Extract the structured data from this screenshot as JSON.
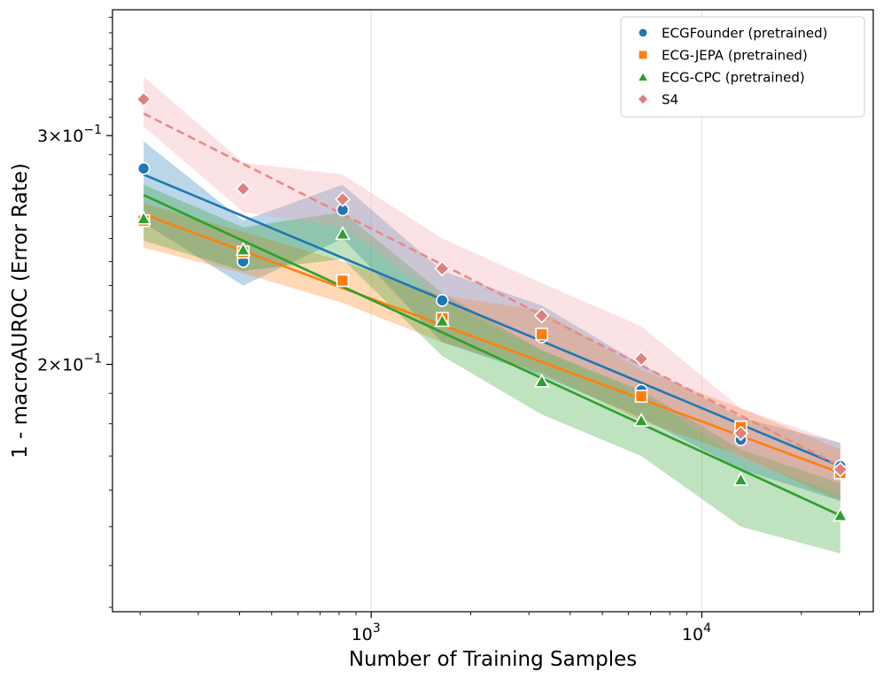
{
  "chart_data": {
    "type": "scatter",
    "title": "",
    "xlabel": "Number of Training Samples",
    "ylabel": "1 - macroAUROC (Error Rate)",
    "xscale": "log",
    "yscale": "log",
    "xlim": [
      165,
      33000
    ],
    "ylim": [
      0.129,
      0.375
    ],
    "grid": "vertical",
    "legend_position": "top-right",
    "x_ticks": [
      {
        "value": 1000,
        "base": "10",
        "exp": "3"
      },
      {
        "value": 10000,
        "base": "10",
        "exp": "4"
      }
    ],
    "y_ticks": [
      {
        "value": 0.3,
        "mant": "3",
        "times": "×",
        "base": "10",
        "exp": "−1"
      },
      {
        "value": 0.2,
        "mant": "2",
        "times": "×",
        "base": "10",
        "exp": "−1"
      }
    ],
    "x": [
      205,
      410,
      820,
      1640,
      3280,
      6560,
      13120,
      26240
    ],
    "series": [
      {
        "name": "ECGFounder (pretrained)",
        "color": "#1f77b4",
        "marker": "circle",
        "line_style": "solid",
        "values": [
          0.283,
          0.24,
          0.263,
          0.224,
          0.21,
          0.191,
          0.175,
          0.167
        ],
        "band_low": [
          0.257,
          0.23,
          0.25,
          0.208,
          0.196,
          0.182,
          0.166,
          0.157
        ],
        "band_high": [
          0.297,
          0.258,
          0.275,
          0.236,
          0.222,
          0.2,
          0.182,
          0.174
        ],
        "fit": [
          0.28,
          0.167
        ]
      },
      {
        "name": "ECG-JEPA (pretrained)",
        "color": "#ff7f0e",
        "marker": "square",
        "line_style": "solid",
        "values": [
          0.258,
          0.244,
          0.232,
          0.217,
          0.211,
          0.189,
          0.179,
          0.165
        ],
        "band_low": [
          0.246,
          0.235,
          0.223,
          0.208,
          0.197,
          0.181,
          0.17,
          0.157
        ],
        "band_high": [
          0.266,
          0.253,
          0.24,
          0.226,
          0.22,
          0.198,
          0.185,
          0.172
        ],
        "fit": [
          0.261,
          0.165
        ]
      },
      {
        "name": "ECG-CPC (pretrained)",
        "color": "#2ca02c",
        "marker": "triangle",
        "line_style": "solid",
        "values": [
          0.259,
          0.245,
          0.252,
          0.216,
          0.194,
          0.181,
          0.163,
          0.153
        ],
        "band_low": [
          0.249,
          0.236,
          0.241,
          0.203,
          0.183,
          0.17,
          0.15,
          0.143
        ],
        "band_high": [
          0.275,
          0.255,
          0.262,
          0.227,
          0.205,
          0.191,
          0.172,
          0.162
        ],
        "fit": [
          0.27,
          0.153
        ]
      },
      {
        "name": "S4",
        "color": "#e377c2",
        "line_color": "#e88a8a",
        "marker_color": "#e07f7f",
        "band_color": "#f2a0a8",
        "marker": "diamond",
        "line_style": "dashed",
        "values": [
          0.32,
          0.273,
          0.268,
          0.237,
          0.218,
          0.202,
          0.177,
          0.166
        ],
        "band_low": [
          0.305,
          0.262,
          0.255,
          0.224,
          0.205,
          0.19,
          0.169,
          0.159
        ],
        "band_high": [
          0.333,
          0.286,
          0.28,
          0.25,
          0.231,
          0.214,
          0.185,
          0.174
        ],
        "fit": [
          0.312,
          0.167
        ]
      }
    ]
  }
}
